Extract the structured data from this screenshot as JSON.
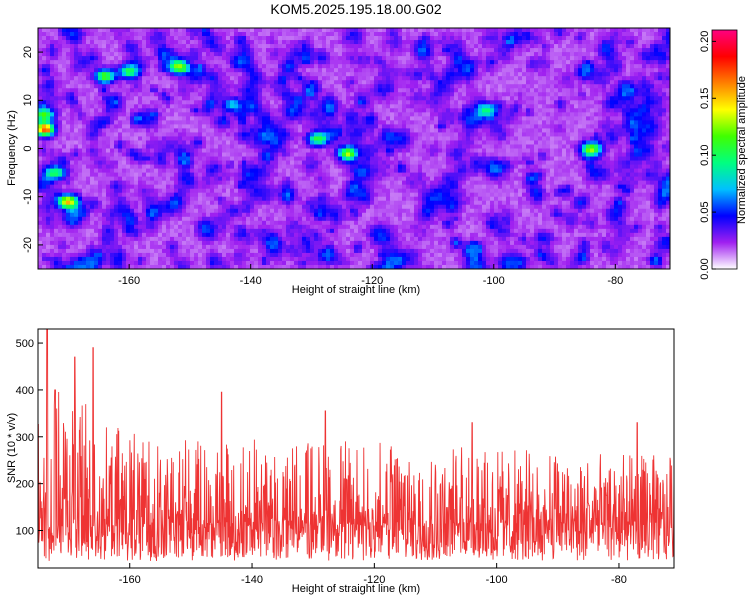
{
  "title": "KOM5.2025.195.18.00.G02",
  "colors": {
    "snr_line": "#ee3333",
    "axis": "#000000"
  },
  "chart_data": [
    {
      "type": "heatmap",
      "title": "",
      "xlabel": "Height of straight line (km)",
      "ylabel": "Frequency (Hz)",
      "xlim": [
        -175,
        -71
      ],
      "ylim": [
        -25,
        25
      ],
      "xticks": [
        -160,
        -140,
        -120,
        -100,
        -80
      ],
      "yticks": [
        -20,
        -10,
        0,
        10,
        20
      ],
      "colorbar": {
        "label": "Normalized spectral amplitude",
        "range": [
          0,
          0.21
        ],
        "ticks": [
          "0.00",
          "0.05",
          "0.10",
          "0.15",
          "0.20"
        ],
        "colormap": [
          "#ffffff",
          "#a020f0",
          "#0000ff",
          "#00c0ff",
          "#00ff80",
          "#40ff00",
          "#ffff00",
          "#ff8000",
          "#ff0000",
          "#ff0080"
        ]
      },
      "background_level": 0.03,
      "hotspots": [
        {
          "x": -174,
          "y": 7,
          "value": 0.13
        },
        {
          "x": -174,
          "y": 4,
          "value": 0.18
        },
        {
          "x": -170,
          "y": -11,
          "value": 0.16
        },
        {
          "x": -172,
          "y": -5,
          "value": 0.11
        },
        {
          "x": -164,
          "y": 15,
          "value": 0.13
        },
        {
          "x": -160,
          "y": 16,
          "value": 0.12
        },
        {
          "x": -152,
          "y": 17,
          "value": 0.12
        },
        {
          "x": -129,
          "y": 2,
          "value": 0.12
        },
        {
          "x": -124,
          "y": -1,
          "value": 0.13
        },
        {
          "x": -84,
          "y": 0,
          "value": 0.12
        },
        {
          "x": -101,
          "y": 8,
          "value": 0.1
        },
        {
          "x": -143,
          "y": 9,
          "value": 0.09
        }
      ]
    },
    {
      "type": "line",
      "title": "",
      "xlabel": "Height of straight line (km)",
      "ylabel": "SNR (10 * v/v)",
      "xlim": [
        -175,
        -71
      ],
      "ylim": [
        20,
        530
      ],
      "xticks": [
        -160,
        -140,
        -120,
        -100,
        -80
      ],
      "yticks": [
        100,
        200,
        300,
        400,
        500
      ],
      "series": [
        {
          "color": "#ee3333",
          "noise_model": {
            "points": 1600,
            "baseline": 115,
            "envelope": [
              [
                -175,
                330
              ],
              [
                -172,
                400
              ],
              [
                -168,
                380
              ],
              [
                -164,
                330
              ],
              [
                -150,
                300
              ],
              [
                -120,
                290
              ],
              [
                -90,
                270
              ],
              [
                -71,
                260
              ]
            ]
          },
          "peaks": [
            {
              "x": -173.5,
              "y": 530
            },
            {
              "x": -172.2,
              "y": 400
            },
            {
              "x": -169,
              "y": 470
            },
            {
              "x": -166,
              "y": 490
            },
            {
              "x": -145,
              "y": 395
            },
            {
              "x": -128,
              "y": 355
            },
            {
              "x": -104,
              "y": 330
            },
            {
              "x": -77,
              "y": 330
            }
          ]
        }
      ]
    }
  ]
}
